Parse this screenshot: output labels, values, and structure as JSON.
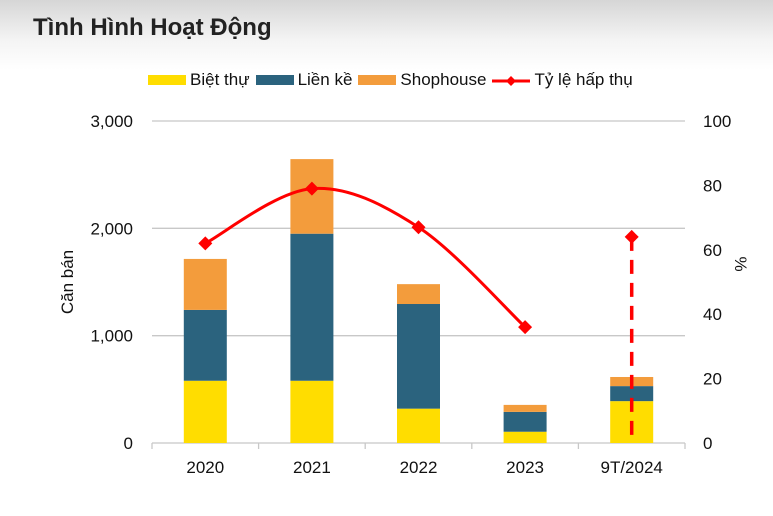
{
  "title": "Tình Hình Hoạt Động",
  "legend": [
    {
      "label": "Biệt thự",
      "type": "bar",
      "color": "#FFDD00"
    },
    {
      "label": "Liền kề",
      "type": "bar",
      "color": "#2B637E"
    },
    {
      "label": "Shophouse",
      "type": "bar",
      "color": "#F39C3C"
    },
    {
      "label": "Tỷ lệ hấp thụ",
      "type": "line",
      "color": "#FF0000"
    }
  ],
  "chart_data": {
    "type": "bar",
    "title": "Tình Hình Hoạt Động",
    "categories": [
      "2020",
      "2021",
      "2022",
      "2023",
      "9T/2024"
    ],
    "series": [
      {
        "name": "Biệt thự",
        "type": "stacked-bar",
        "axis": "left",
        "color": "#FFDD00",
        "values": [
          580,
          580,
          320,
          105,
          390
        ]
      },
      {
        "name": "Liền kề",
        "type": "stacked-bar",
        "axis": "left",
        "color": "#2B637E",
        "values": [
          660,
          1370,
          975,
          185,
          140
        ]
      },
      {
        "name": "Shophouse",
        "type": "stacked-bar",
        "axis": "left",
        "color": "#F39C3C",
        "values": [
          475,
          695,
          185,
          65,
          85
        ]
      },
      {
        "name": "Tỷ lệ hấp thụ",
        "type": "line",
        "axis": "right",
        "color": "#FF0000",
        "values": [
          62,
          79,
          67,
          36,
          64
        ],
        "line_style": "smooth solid for 2020–2023; 9T/2024 shown as marker with dashed vertical line"
      }
    ],
    "ylabel": "Căn bán",
    "y2label": "%",
    "xlabel": "",
    "ylim": [
      0,
      3000
    ],
    "y2lim": [
      0,
      100
    ],
    "yticks": [
      "0",
      "1,000",
      "2,000",
      "3,000"
    ],
    "y2ticks": [
      "0",
      "20",
      "40",
      "60",
      "80",
      "100"
    ],
    "grid": true,
    "legend_position": "top"
  }
}
